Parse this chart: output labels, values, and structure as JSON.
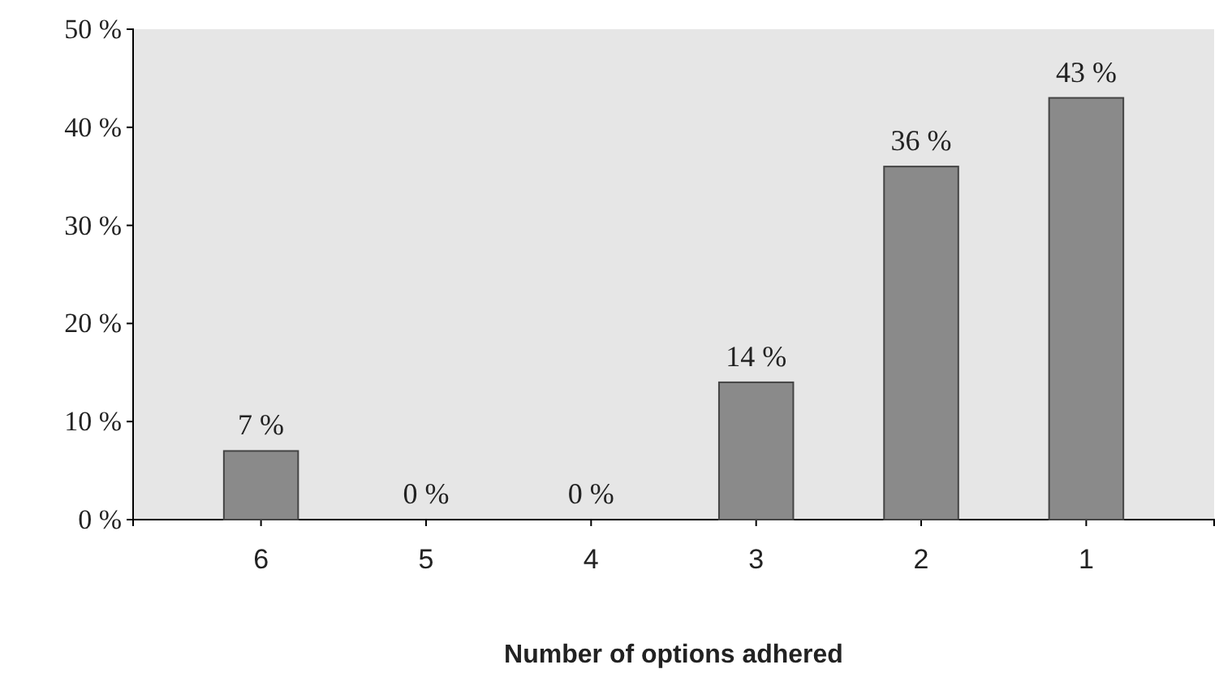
{
  "chart_data": {
    "type": "bar",
    "xlabel": "Number of options adhered",
    "categories": [
      "6",
      "5",
      "4",
      "3",
      "2",
      "1"
    ],
    "values": [
      7,
      0,
      0,
      14,
      36,
      43
    ],
    "value_labels": [
      "7 %",
      "0 %",
      "0 %",
      "14 %",
      "36 %",
      "43 %"
    ],
    "color": "#8a8a8a",
    "ylim": [
      0,
      50
    ],
    "yticks": [
      {
        "value": 0,
        "label": "0 %"
      },
      {
        "value": 10,
        "label": "10 %"
      },
      {
        "value": 20,
        "label": "20 %"
      },
      {
        "value": 30,
        "label": "30 %"
      },
      {
        "value": 40,
        "label": "40 %"
      },
      {
        "value": 50,
        "label": "50 %"
      }
    ],
    "grid": false
  }
}
